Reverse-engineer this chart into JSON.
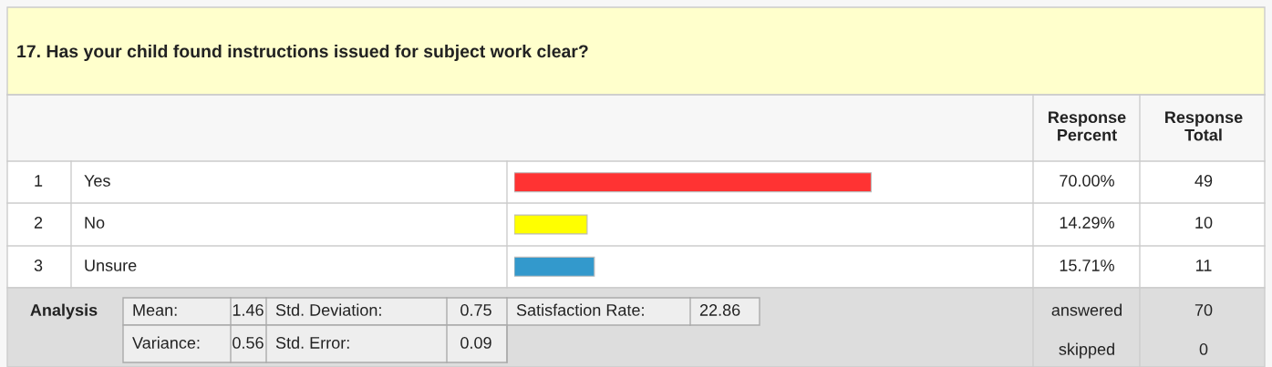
{
  "chart_data": {
    "type": "bar",
    "orientation": "horizontal",
    "title": "17. Has your child found instructions issued for subject work clear?",
    "categories": [
      "Yes",
      "No",
      "Unsure"
    ],
    "values": [
      70.0,
      14.29,
      15.71
    ],
    "colors": [
      "#ff3333",
      "#ffff00",
      "#3399cc"
    ],
    "value_labels": [
      "70.00%",
      "14.29%",
      "15.71%"
    ],
    "annotations": [
      "Response Percent",
      "Response Total",
      "1",
      "2",
      "3",
      "49",
      "10",
      "11",
      "Analysis",
      "Mean:",
      "1.46",
      "Std. Deviation:",
      "0.75",
      "Satisfaction Rate:",
      "22.86",
      "Variance:",
      "0.56",
      "Std. Error:",
      "0.09",
      "answered",
      "70",
      "skipped",
      "0"
    ]
  }
}
